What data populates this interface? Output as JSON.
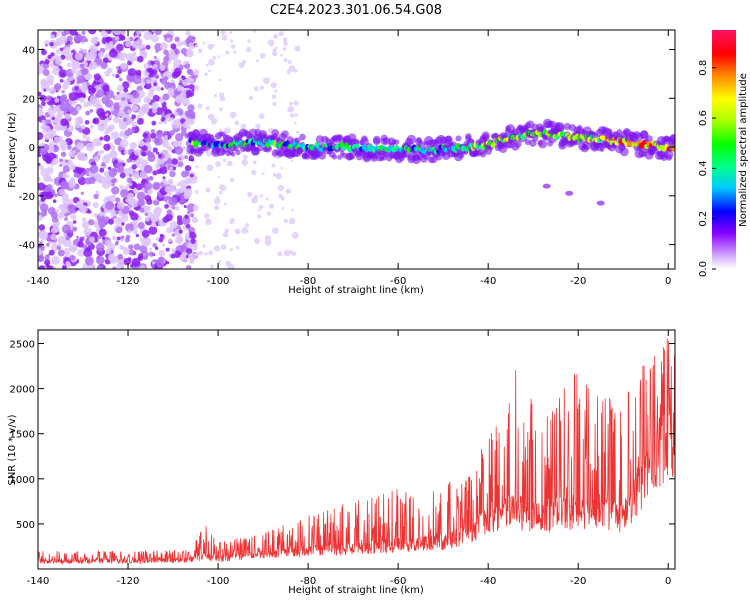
{
  "title": "C2E4.2023.301.06.54.G08",
  "chart_data": [
    {
      "type": "heatmap",
      "xlabel": "Height of straight line (km)",
      "ylabel": "Frequency (Hz)",
      "xlim": [
        -140,
        1.5
      ],
      "ylim": [
        -50,
        48
      ],
      "xticks": [
        -140,
        -120,
        -100,
        -80,
        -60,
        -40,
        -20,
        0
      ],
      "yticks": [
        -40,
        -20,
        0,
        20,
        40
      ],
      "colorbar": {
        "label": "Normalized spectral amplitude",
        "range": [
          0,
          0.95
        ],
        "ticks": [
          0.0,
          0.2,
          0.4,
          0.6,
          0.8
        ],
        "tick_labels": [
          "0.0",
          "0.2",
          "0.4",
          "0.6",
          "0.8"
        ],
        "colormap": [
          "#ffffff",
          "#cc99ff",
          "#8800ff",
          "#0000ff",
          "#00ccff",
          "#00ff88",
          "#00ff00",
          "#aaff00",
          "#ffff00",
          "#ff8800",
          "#ff0000",
          "#ff1166"
        ]
      },
      "band": {
        "center_hz": [
          {
            "x": -105,
            "y": 2
          },
          {
            "x": -100,
            "y": 1
          },
          {
            "x": -90,
            "y": 2
          },
          {
            "x": -80,
            "y": 0
          },
          {
            "x": -70,
            "y": 0
          },
          {
            "x": -60,
            "y": -1
          },
          {
            "x": -50,
            "y": -1
          },
          {
            "x": -40,
            "y": 1
          },
          {
            "x": -35,
            "y": 4
          },
          {
            "x": -30,
            "y": 6
          },
          {
            "x": -25,
            "y": 5
          },
          {
            "x": -20,
            "y": 4
          },
          {
            "x": -15,
            "y": 3
          },
          {
            "x": -10,
            "y": 2
          },
          {
            "x": -5,
            "y": 1
          },
          {
            "x": 0,
            "y": 0
          },
          {
            "x": 1.5,
            "y": 0
          }
        ],
        "halfwidth_hz": 4
      }
    },
    {
      "type": "line",
      "xlabel": "Height of straight line (km)",
      "ylabel": "SNR (10 * v/v)",
      "xlim": [
        -140,
        1.5
      ],
      "ylim": [
        0,
        2650
      ],
      "xticks": [
        -140,
        -120,
        -100,
        -80,
        -60,
        -40,
        -20,
        0
      ],
      "yticks": [
        500,
        1000,
        1500,
        2000,
        2500
      ],
      "color": "#ee3333",
      "envelope": [
        {
          "x": -140,
          "base": 100,
          "peak": 200
        },
        {
          "x": -120,
          "base": 110,
          "peak": 200
        },
        {
          "x": -106,
          "base": 130,
          "peak": 220
        },
        {
          "x": -103,
          "base": 180,
          "peak": 500
        },
        {
          "x": -100,
          "base": 150,
          "peak": 300
        },
        {
          "x": -90,
          "base": 200,
          "peak": 400
        },
        {
          "x": -80,
          "base": 250,
          "peak": 600
        },
        {
          "x": -70,
          "base": 280,
          "peak": 750
        },
        {
          "x": -60,
          "base": 330,
          "peak": 900
        },
        {
          "x": -50,
          "base": 380,
          "peak": 950
        },
        {
          "x": -44,
          "base": 500,
          "peak": 1100
        },
        {
          "x": -40,
          "base": 700,
          "peak": 1500
        },
        {
          "x": -34,
          "base": 800,
          "peak": 2300
        },
        {
          "x": -28,
          "base": 700,
          "peak": 1600
        },
        {
          "x": -21,
          "base": 800,
          "peak": 2200
        },
        {
          "x": -15,
          "base": 800,
          "peak": 1900
        },
        {
          "x": -10,
          "base": 700,
          "peak": 2000
        },
        {
          "x": -5,
          "base": 1300,
          "peak": 2300
        },
        {
          "x": 0,
          "base": 1800,
          "peak": 2600
        },
        {
          "x": 1.5,
          "base": 1700,
          "peak": 2500
        }
      ]
    }
  ]
}
